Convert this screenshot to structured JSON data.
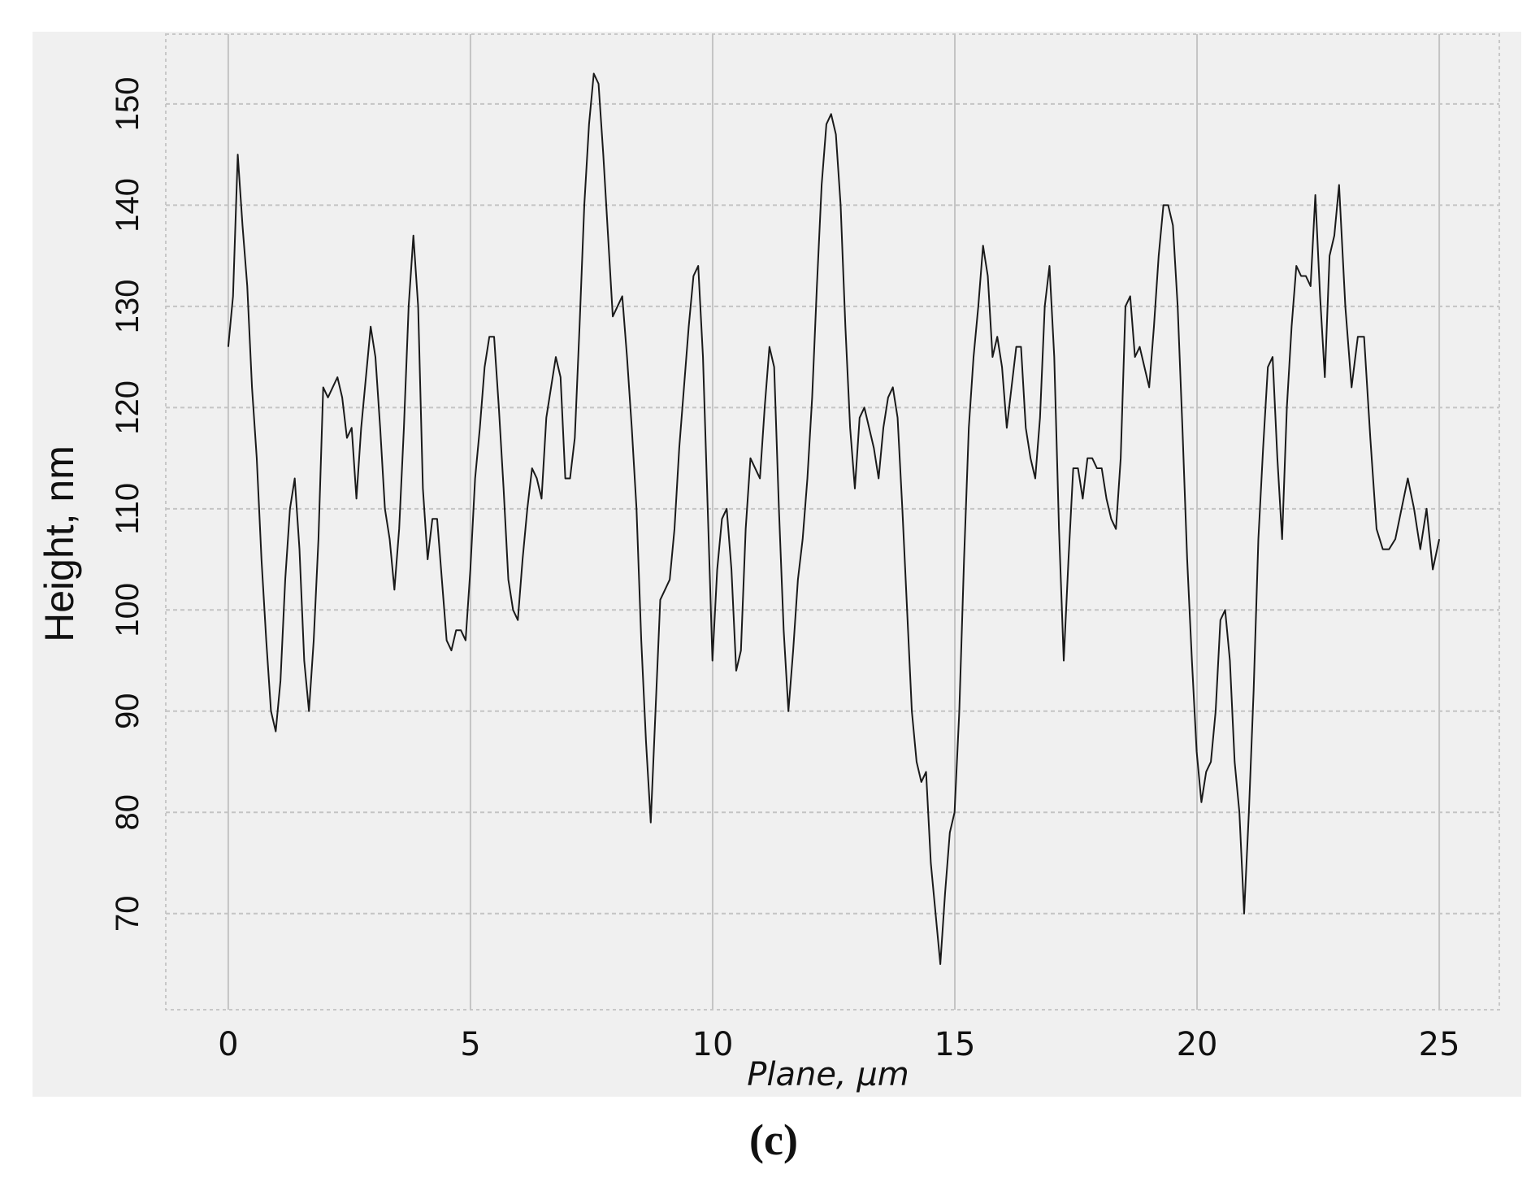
{
  "chart_data": {
    "type": "line",
    "caption": "(c)",
    "x_label": "Plane, μm",
    "y_label": "Height, nm",
    "color": "#1a1a1a",
    "grid": true,
    "xlim": [
      -1.29,
      26.24
    ],
    "ylim": [
      60.5,
      156.9
    ],
    "xticks": [
      0,
      5,
      10,
      15,
      20,
      25
    ],
    "yticks": [
      70,
      80,
      90,
      100,
      110,
      120,
      130,
      140,
      150
    ],
    "x": [
      0,
      0.098,
      0.196,
      0.294,
      0.392,
      0.49,
      0.588,
      0.686,
      0.784,
      0.882,
      0.98,
      1.078,
      1.176,
      1.274,
      1.372,
      1.47,
      1.568,
      1.666,
      1.764,
      1.862,
      1.96,
      2.058,
      2.156,
      2.254,
      2.352,
      2.45,
      2.548,
      2.646,
      2.744,
      2.842,
      2.94,
      3.038,
      3.136,
      3.234,
      3.332,
      3.43,
      3.528,
      3.626,
      3.724,
      3.822,
      3.92,
      4.018,
      4.116,
      4.214,
      4.312,
      4.41,
      4.508,
      4.606,
      4.704,
      4.802,
      4.9,
      4.998,
      5.096,
      5.194,
      5.292,
      5.39,
      5.488,
      5.586,
      5.684,
      5.782,
      5.88,
      5.978,
      6.076,
      6.174,
      6.272,
      6.37,
      6.468,
      6.566,
      6.664,
      6.762,
      6.86,
      6.958,
      7.056,
      7.154,
      7.252,
      7.35,
      7.448,
      7.546,
      7.644,
      7.742,
      7.84,
      7.938,
      8.036,
      8.134,
      8.232,
      8.33,
      8.428,
      8.526,
      8.624,
      8.722,
      8.82,
      8.918,
      9.016,
      9.114,
      9.212,
      9.31,
      9.408,
      9.506,
      9.604,
      9.702,
      9.8,
      9.898,
      9.996,
      10.094,
      10.192,
      10.29,
      10.388,
      10.486,
      10.584,
      10.682,
      10.78,
      10.878,
      10.976,
      11.074,
      11.172,
      11.27,
      11.368,
      11.466,
      11.564,
      11.662,
      11.76,
      11.858,
      11.956,
      12.054,
      12.152,
      12.25,
      12.348,
      12.446,
      12.544,
      12.642,
      12.74,
      12.838,
      12.936,
      13.034,
      13.132,
      13.23,
      13.328,
      13.426,
      13.524,
      13.622,
      13.72,
      13.818,
      13.916,
      14.014,
      14.112,
      14.21,
      14.308,
      14.406,
      14.504,
      14.602,
      14.7,
      14.798,
      14.896,
      14.994,
      15.092,
      15.19,
      15.288,
      15.386,
      15.484,
      15.582,
      15.68,
      15.778,
      15.876,
      15.974,
      16.072,
      16.17,
      16.268,
      16.366,
      16.464,
      16.562,
      16.66,
      16.758,
      16.856,
      16.954,
      17.052,
      17.15,
      17.248,
      17.346,
      17.444,
      17.542,
      17.64,
      17.738,
      17.836,
      17.934,
      18.032,
      18.13,
      18.228,
      18.326,
      18.424,
      18.522,
      18.62,
      18.718,
      18.816,
      18.914,
      19.012,
      19.11,
      19.208,
      19.306,
      19.404,
      19.502,
      19.6,
      19.698,
      19.796,
      19.894,
      19.992,
      20.09,
      20.188,
      20.286,
      20.384,
      20.482,
      20.58,
      20.678,
      20.776,
      20.874,
      20.972,
      21.07,
      21.168,
      21.266,
      21.364,
      21.462,
      21.56,
      21.658,
      21.756,
      21.854,
      21.952,
      22.05,
      22.148,
      22.246,
      22.344,
      22.442,
      22.54,
      22.638,
      22.736,
      22.834,
      22.932,
      23.061,
      23.19,
      23.319,
      23.448,
      23.577,
      23.706,
      23.835,
      23.964,
      24.093,
      24.222,
      24.351,
      24.48,
      24.609,
      24.738,
      24.867,
      25
    ],
    "values": [
      126,
      131,
      145,
      138,
      132,
      122,
      115,
      105,
      97,
      90,
      88,
      93,
      103,
      110,
      113,
      106,
      95,
      90,
      97,
      107,
      122,
      121,
      122,
      123,
      121,
      117,
      118,
      111,
      118,
      123,
      128,
      125,
      118,
      110,
      107,
      102,
      108,
      118,
      130,
      137,
      130,
      112,
      105,
      109,
      109,
      103,
      97,
      96,
      98,
      98,
      97,
      104,
      113,
      118,
      124,
      127,
      127,
      120,
      112,
      103,
      100,
      99,
      105,
      110,
      114,
      113,
      111,
      119,
      122,
      125,
      123,
      113,
      113,
      117,
      128,
      140,
      148,
      153,
      152,
      145,
      137,
      129,
      130,
      131,
      125,
      118,
      110,
      97,
      87,
      79,
      90,
      101,
      102,
      103,
      108,
      116,
      122,
      128,
      133,
      134,
      125,
      110,
      95,
      104,
      109,
      110,
      104,
      94,
      96,
      108,
      115,
      114,
      113,
      120,
      126,
      124,
      110,
      98,
      90,
      96,
      103,
      107,
      113,
      121,
      132,
      142,
      148,
      149,
      147,
      140,
      128,
      118,
      112,
      119,
      120,
      118,
      116,
      113,
      118,
      121,
      122,
      119,
      110,
      100,
      90,
      85,
      83,
      84,
      75,
      70,
      65,
      72,
      78,
      80,
      90,
      105,
      118,
      125,
      130,
      136,
      133,
      125,
      127,
      124,
      118,
      122,
      126,
      126,
      118,
      115,
      113,
      119,
      130,
      134,
      125,
      108,
      95,
      105,
      114,
      114,
      111,
      115,
      115,
      114,
      114,
      111,
      109,
      108,
      115,
      130,
      131,
      125,
      126,
      124,
      122,
      128,
      135,
      140,
      140,
      138,
      130,
      118,
      105,
      95,
      86,
      81,
      84,
      85,
      90,
      99,
      100,
      95,
      85,
      80,
      70,
      80,
      92,
      107,
      116,
      124,
      125,
      115,
      107,
      120,
      128,
      134,
      133,
      133,
      132,
      141,
      131,
      123,
      135,
      137,
      142,
      130,
      122,
      127,
      127,
      117,
      108,
      106,
      106,
      107,
      110,
      113,
      110,
      106,
      110,
      104,
      107
    ]
  }
}
